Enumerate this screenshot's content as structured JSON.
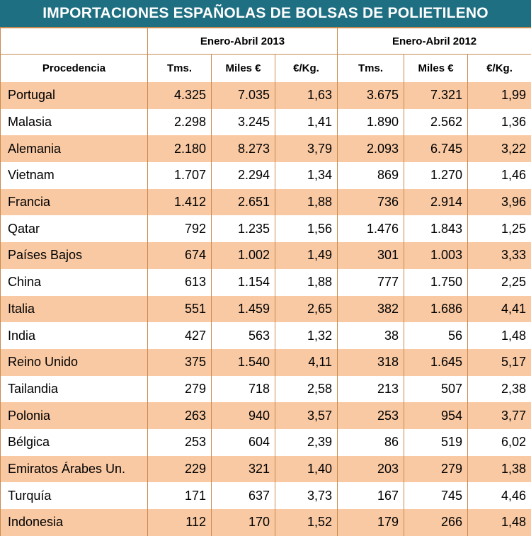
{
  "title": "IMPORTACIONES ESPAÑOLAS DE BOLSAS DE POLIETILENO",
  "periods": [
    "Enero-Abril 2013",
    "Enero-Abril 2012"
  ],
  "columns": {
    "origin": "Procedencia",
    "tons": "Tms.",
    "thousand_eur": "Miles €",
    "eur_per_kg": "€/Kg."
  },
  "colors": {
    "title_bg": "#1f6f82",
    "stripe": "#f9c9a3",
    "border": "#c98a4e"
  },
  "rows": [
    {
      "name": "Portugal",
      "y2013": [
        "4.325",
        "7.035",
        "1,63"
      ],
      "y2012": [
        "3.675",
        "7.321",
        "1,99"
      ]
    },
    {
      "name": "Malasia",
      "y2013": [
        "2.298",
        "3.245",
        "1,41"
      ],
      "y2012": [
        "1.890",
        "2.562",
        "1,36"
      ]
    },
    {
      "name": "Alemania",
      "y2013": [
        "2.180",
        "8.273",
        "3,79"
      ],
      "y2012": [
        "2.093",
        "6.745",
        "3,22"
      ]
    },
    {
      "name": "Vietnam",
      "y2013": [
        "1.707",
        "2.294",
        "1,34"
      ],
      "y2012": [
        "869",
        "1.270",
        "1,46"
      ]
    },
    {
      "name": "Francia",
      "y2013": [
        "1.412",
        "2.651",
        "1,88"
      ],
      "y2012": [
        "736",
        "2.914",
        "3,96"
      ]
    },
    {
      "name": "Qatar",
      "y2013": [
        "792",
        "1.235",
        "1,56"
      ],
      "y2012": [
        "1.476",
        "1.843",
        "1,25"
      ]
    },
    {
      "name": "Países Bajos",
      "y2013": [
        "674",
        "1.002",
        "1,49"
      ],
      "y2012": [
        "301",
        "1.003",
        "3,33"
      ]
    },
    {
      "name": "China",
      "y2013": [
        "613",
        "1.154",
        "1,88"
      ],
      "y2012": [
        "777",
        "1.750",
        "2,25"
      ]
    },
    {
      "name": "Italia",
      "y2013": [
        "551",
        "1.459",
        "2,65"
      ],
      "y2012": [
        "382",
        "1.686",
        "4,41"
      ]
    },
    {
      "name": "India",
      "y2013": [
        "427",
        "563",
        "1,32"
      ],
      "y2012": [
        "38",
        "56",
        "1,48"
      ]
    },
    {
      "name": "Reino Unido",
      "y2013": [
        "375",
        "1.540",
        "4,11"
      ],
      "y2012": [
        "318",
        "1.645",
        "5,17"
      ]
    },
    {
      "name": "Tailandia",
      "y2013": [
        "279",
        "718",
        "2,58"
      ],
      "y2012": [
        "213",
        "507",
        "2,38"
      ]
    },
    {
      "name": "Polonia",
      "y2013": [
        "263",
        "940",
        "3,57"
      ],
      "y2012": [
        "253",
        "954",
        "3,77"
      ]
    },
    {
      "name": "Bélgica",
      "y2013": [
        "253",
        "604",
        "2,39"
      ],
      "y2012": [
        "86",
        "519",
        "6,02"
      ]
    },
    {
      "name": "Emiratos Árabes Un.",
      "y2013": [
        "229",
        "321",
        "1,40"
      ],
      "y2012": [
        "203",
        "279",
        "1,38"
      ]
    },
    {
      "name": "Turquía",
      "y2013": [
        "171",
        "637",
        "3,73"
      ],
      "y2012": [
        "167",
        "745",
        "4,46"
      ]
    },
    {
      "name": "Indonesia",
      "y2013": [
        "112",
        "170",
        "1,52"
      ],
      "y2012": [
        "179",
        "266",
        "1,48"
      ]
    }
  ]
}
